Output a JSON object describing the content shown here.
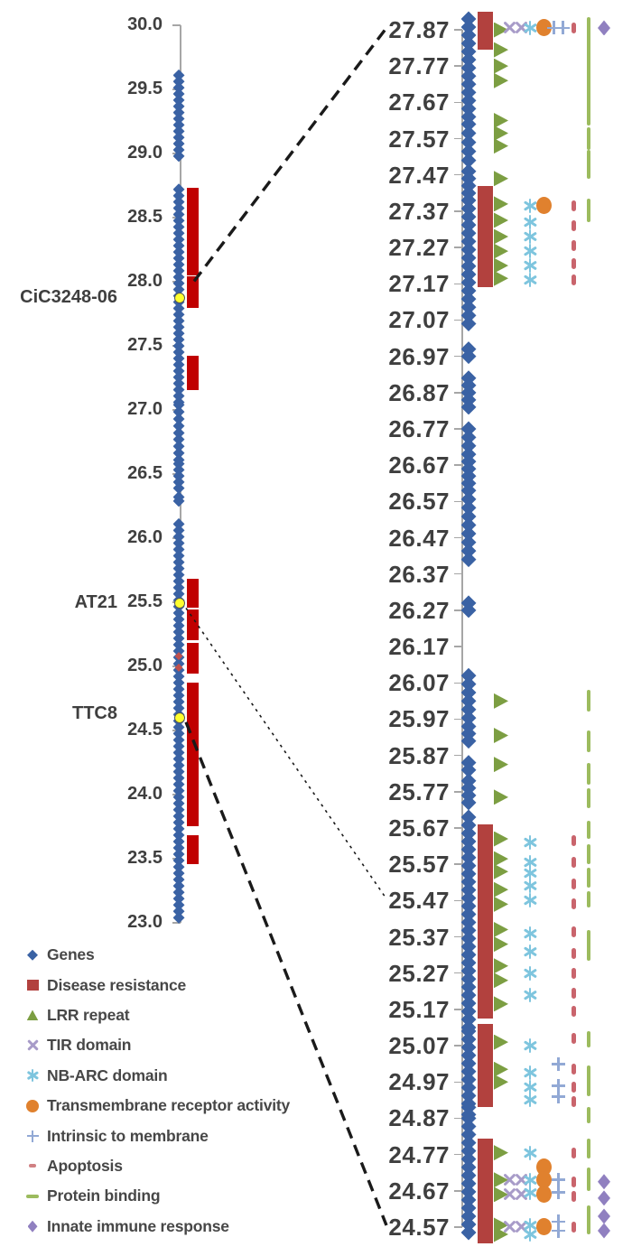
{
  "legend": {
    "items": [
      {
        "label": "Genes",
        "marker": "diamond",
        "color": "#3a62a4"
      },
      {
        "label": "Disease resistance",
        "marker": "square",
        "color": "#b2413e"
      },
      {
        "label": "LRR repeat",
        "marker": "tri-up",
        "color": "#7c9e42"
      },
      {
        "label": "TIR domain",
        "marker": "x",
        "color": "#a79bc8"
      },
      {
        "label": "NB-ARC domain",
        "marker": "star",
        "color": "#7ec5de"
      },
      {
        "label": "Transmembrane receptor activity",
        "marker": "circle",
        "color": "#e0812e"
      },
      {
        "label": "Intrinsic to membrane",
        "marker": "plus",
        "color": "#92a9d5"
      },
      {
        "label": "Apoptosis",
        "marker": "dash-small",
        "color": "#d08083"
      },
      {
        "label": "Protein binding",
        "marker": "dash",
        "color": "#9cbb5e"
      },
      {
        "label": "Innate immune response",
        "marker": "diamond-sm",
        "color": "#9080c0"
      }
    ]
  },
  "chart_data": {
    "type": "scatter",
    "title": "",
    "layout": "two-panel genome map: overview chromosome (left) and zoomed interval (right) linked by dashed lines",
    "colors": {
      "genes": "#3a62a4",
      "disease_left": "#c00000",
      "disease_right": "#b2413e",
      "lrr": "#7c9e42",
      "tir": "#a79bc8",
      "nbarc": "#7ec5de",
      "tmr": "#e0812e",
      "intrinsic": "#92a9d5",
      "apoptosis": "#c9646c",
      "protein": "#9cbb5e",
      "innate": "#9080c0",
      "locus_dot": "#feff2e",
      "axis": "#a6a6a6",
      "text": "#3f3f3f"
    },
    "overview": {
      "axis_max": 30.0,
      "axis_min": 23.0,
      "tick_step": 0.5,
      "ticks": [
        "30.0",
        "29.5",
        "29.0",
        "28.5",
        "28.0",
        "27.5",
        "27.0",
        "26.5",
        "26.0",
        "25.5",
        "25.0",
        "24.5",
        "24.0",
        "23.5",
        "23.0"
      ],
      "gene_segments": [
        [
          29.61,
          28.98
        ],
        [
          28.72,
          27.06
        ],
        [
          27.04,
          26.82
        ],
        [
          26.77,
          26.61
        ],
        [
          26.58,
          26.39
        ],
        [
          26.32,
          26.29
        ],
        [
          26.11,
          23.04
        ]
      ],
      "disease_bars": [
        [
          28.72,
          28.06
        ],
        [
          28.03,
          27.81
        ],
        [
          27.41,
          27.17
        ],
        [
          25.67,
          25.47
        ],
        [
          25.43,
          25.22
        ],
        [
          25.17,
          24.96
        ],
        [
          24.86,
          23.77
        ],
        [
          23.67,
          23.47
        ]
      ],
      "apoptosis_points": [
        25.08,
        24.99
      ],
      "loci": [
        {
          "label": "CiC3248-06",
          "value": 27.87
        },
        {
          "label": "AT21",
          "value": 25.49
        },
        {
          "label": "TTC8",
          "value": 24.6
        }
      ]
    },
    "detail": {
      "axis_max": 27.87,
      "axis_min": 24.57,
      "tick_step": 0.1,
      "ticks": [
        "27.87",
        "27.77",
        "27.67",
        "27.57",
        "27.47",
        "27.37",
        "27.27",
        "27.17",
        "27.07",
        "26.97",
        "26.87",
        "26.77",
        "26.67",
        "26.57",
        "26.47",
        "26.37",
        "26.27",
        "26.17",
        "26.07",
        "25.97",
        "25.87",
        "25.77",
        "25.67",
        "25.57",
        "25.47",
        "25.37",
        "25.27",
        "25.17",
        "25.07",
        "24.97",
        "24.87",
        "24.77",
        "24.67",
        "24.57"
      ],
      "series": {
        "genes_segments": [
          [
            27.9,
            27.63
          ],
          [
            27.61,
            27.51
          ],
          [
            27.48,
            27.42
          ],
          [
            27.4,
            27.06
          ],
          [
            26.99,
            26.97
          ],
          [
            26.91,
            26.83
          ],
          [
            26.77,
            26.7
          ],
          [
            26.68,
            26.62
          ],
          [
            26.6,
            26.41
          ],
          [
            26.29,
            26.27
          ],
          [
            26.09,
            25.95
          ],
          [
            25.93,
            25.91
          ],
          [
            25.85,
            25.83
          ],
          [
            25.8,
            25.74
          ],
          [
            25.7,
            25.12
          ],
          [
            25.11,
            24.91
          ],
          [
            24.9,
            24.88
          ],
          [
            24.87,
            24.555
          ]
        ],
        "disease_blocks": [
          [
            27.9,
            27.835
          ],
          [
            27.42,
            27.345
          ],
          [
            27.33,
            27.18
          ],
          [
            25.66,
            25.62
          ],
          [
            25.605,
            25.45
          ],
          [
            25.42,
            25.335
          ],
          [
            25.325,
            25.25
          ],
          [
            25.23,
            25.165
          ],
          [
            25.11,
            25.055
          ],
          [
            25.035,
            24.92
          ],
          [
            24.795,
            24.735
          ],
          [
            24.72,
            24.64
          ],
          [
            24.62,
            24.545
          ]
        ],
        "lrr_values": [
          27.87,
          27.815,
          27.77,
          27.73,
          27.62,
          27.585,
          27.55,
          27.46,
          27.39,
          27.345,
          27.3,
          27.26,
          27.22,
          27.185,
          26.02,
          25.925,
          25.845,
          25.755,
          25.64,
          25.585,
          25.55,
          25.5,
          25.46,
          25.39,
          25.35,
          25.29,
          25.25,
          25.185,
          25.08,
          25.005,
          24.97,
          24.775,
          24.7,
          24.66,
          24.575,
          24.55
        ],
        "tir_markers": [
          [
            27.875,
            -6
          ],
          [
            27.875,
            7
          ],
          [
            24.7,
            -6
          ],
          [
            24.7,
            7
          ],
          [
            24.66,
            -6
          ],
          [
            24.66,
            7
          ],
          [
            24.57,
            -6
          ],
          [
            24.57,
            7
          ]
        ],
        "nbarc_values": [
          27.875,
          27.385,
          27.34,
          27.3,
          27.26,
          27.22,
          27.18,
          25.63,
          25.575,
          25.545,
          25.51,
          25.47,
          25.38,
          25.33,
          25.27,
          25.21,
          25.07,
          24.995,
          24.955,
          24.92,
          24.775,
          24.7,
          24.665,
          24.575,
          24.55
        ],
        "tmr_values": [
          27.875,
          27.385,
          24.735,
          24.7,
          24.66,
          24.57
        ],
        "intrinsic_markers": [
          [
            27.875,
            -5
          ],
          [
            27.875,
            5
          ],
          [
            25.02,
            0
          ],
          [
            24.96,
            0
          ],
          [
            24.93,
            0
          ],
          [
            24.7,
            0
          ],
          [
            24.665,
            0
          ],
          [
            24.585,
            0
          ],
          [
            24.56,
            0
          ]
        ],
        "apoptosis_values": [
          27.875,
          27.385,
          27.33,
          27.275,
          27.225,
          27.18,
          25.635,
          25.575,
          25.515,
          25.46,
          25.385,
          25.325,
          25.27,
          25.215,
          25.165,
          25.09,
          25.005,
          24.955,
          24.915,
          24.775,
          24.695,
          24.655,
          24.57
        ],
        "protein_segments": [
          [
            27.9,
            27.61
          ],
          [
            27.595,
            27.545
          ],
          [
            27.535,
            27.465
          ],
          [
            27.4,
            27.345
          ],
          [
            26.045,
            25.995
          ],
          [
            25.935,
            25.885
          ],
          [
            25.845,
            25.795
          ],
          [
            25.775,
            25.73
          ],
          [
            25.685,
            25.645
          ],
          [
            25.62,
            25.575
          ],
          [
            25.555,
            25.51
          ],
          [
            25.49,
            25.455
          ],
          [
            25.385,
            25.31
          ],
          [
            25.105,
            25.07
          ],
          [
            25.01,
            24.935
          ],
          [
            24.895,
            24.86
          ],
          [
            24.81,
            24.765
          ],
          [
            24.73,
            24.675
          ],
          [
            24.625,
            24.555
          ]
        ],
        "innate_values": [
          27.875,
          24.695,
          24.65,
          24.6,
          24.56
        ]
      }
    },
    "connectors": [
      {
        "from_locus": "CiC3248-06",
        "to_value": 27.87,
        "style": "dashed-bold"
      },
      {
        "from_locus": "AT21",
        "to_value": 25.47,
        "style": "dotted"
      },
      {
        "from_locus": "TTC8",
        "to_value": 24.57,
        "style": "dashed-bold"
      }
    ]
  }
}
